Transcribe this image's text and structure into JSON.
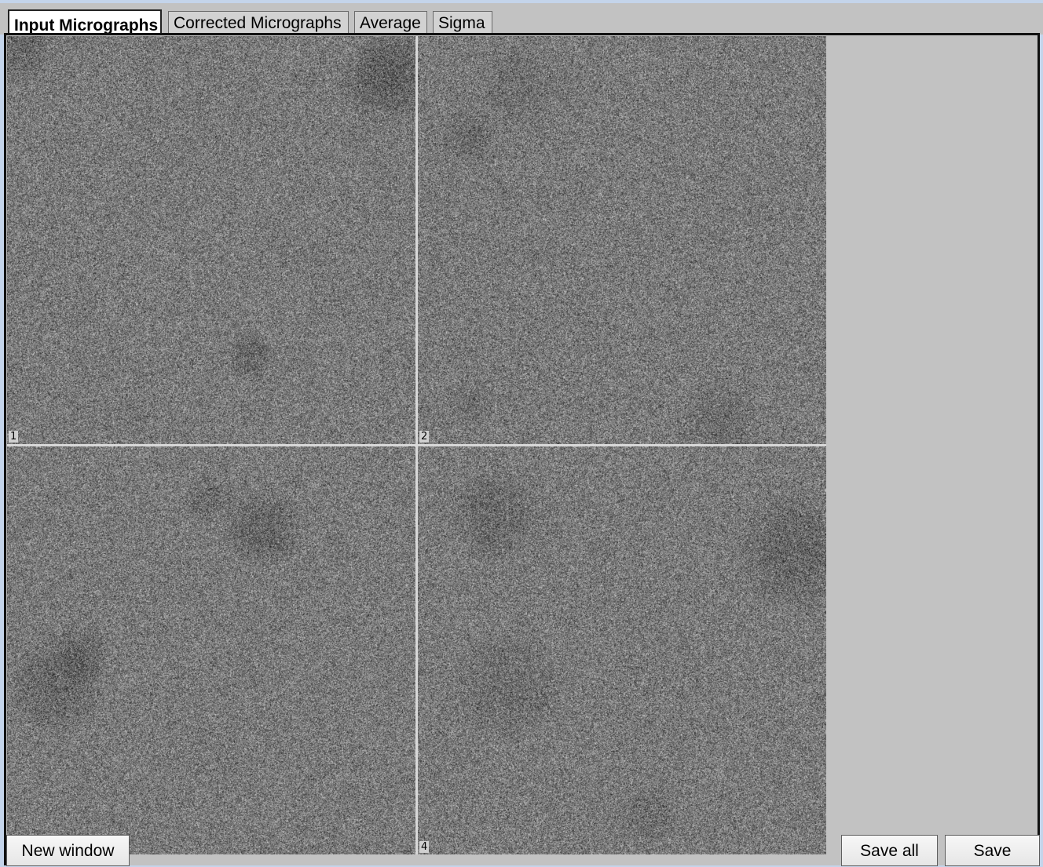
{
  "tabs": [
    {
      "label": "Input Micrographs",
      "active": true
    },
    {
      "label": "Corrected Micrographs",
      "active": false
    },
    {
      "label": "Average",
      "active": false
    },
    {
      "label": "Sigma",
      "active": false
    }
  ],
  "micrographs": [
    {
      "label": "1"
    },
    {
      "label": "2"
    },
    {
      "label": ""
    },
    {
      "label": "4"
    }
  ],
  "buttons": {
    "new_window": "New window",
    "save_all": "Save all",
    "save": "Save"
  },
  "colors": {
    "window_background": "#c4d4ea",
    "panel_background": "#c2c2c2",
    "grid_line": "#d8d8d8",
    "noise_mean": "#7a7a7a"
  }
}
